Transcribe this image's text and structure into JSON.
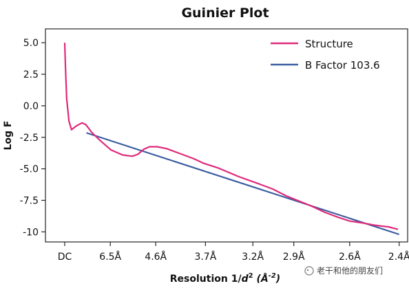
{
  "chart_data": {
    "type": "line",
    "title": "Guinier Plot",
    "ylabel": "Log F",
    "xlabel_parts": [
      "Resolution 1/",
      "d",
      "2",
      " (Å",
      "-2",
      ")"
    ],
    "ylim": [
      -10.8,
      6.1
    ],
    "yticks": [
      5.0,
      2.5,
      0.0,
      -2.5,
      -5.0,
      -7.5,
      -10.0
    ],
    "ytick_labels": [
      "5.0",
      "2.5",
      "0.0",
      "-2.5",
      "-5.0",
      "-7.5",
      "-10"
    ],
    "xlim_inv_d2": [
      -0.01,
      0.178
    ],
    "xticks": [
      {
        "label": "DC",
        "resolution_A": null,
        "inv_d2": 0.0
      },
      {
        "label": "6.5Å",
        "resolution_A": 6.5,
        "inv_d2": 0.02367
      },
      {
        "label": "4.6Å",
        "resolution_A": 4.6,
        "inv_d2": 0.04726
      },
      {
        "label": "3.7Å",
        "resolution_A": 3.7,
        "inv_d2": 0.07305
      },
      {
        "label": "3.2Å",
        "resolution_A": 3.2,
        "inv_d2": 0.09766
      },
      {
        "label": "2.9Å",
        "resolution_A": 2.9,
        "inv_d2": 0.11891
      },
      {
        "label": "2.6Å",
        "resolution_A": 2.6,
        "inv_d2": 0.14793
      },
      {
        "label": "2.4Å",
        "resolution_A": 2.4,
        "inv_d2": 0.17361
      }
    ],
    "series": [
      {
        "name": "Structure",
        "color": "#e0287a",
        "points": [
          [
            0.0,
            5.0
          ],
          [
            0.0004,
            3.0
          ],
          [
            0.001,
            0.6
          ],
          [
            0.0022,
            -1.2
          ],
          [
            0.0035,
            -1.9
          ],
          [
            0.006,
            -1.6
          ],
          [
            0.009,
            -1.35
          ],
          [
            0.011,
            -1.5
          ],
          [
            0.014,
            -2.1
          ],
          [
            0.018,
            -2.7
          ],
          [
            0.024,
            -3.5
          ],
          [
            0.03,
            -3.9
          ],
          [
            0.035,
            -4.0
          ],
          [
            0.038,
            -3.85
          ],
          [
            0.041,
            -3.45
          ],
          [
            0.044,
            -3.25
          ],
          [
            0.048,
            -3.25
          ],
          [
            0.053,
            -3.4
          ],
          [
            0.06,
            -3.8
          ],
          [
            0.067,
            -4.2
          ],
          [
            0.072,
            -4.55
          ],
          [
            0.08,
            -4.95
          ],
          [
            0.09,
            -5.6
          ],
          [
            0.1,
            -6.15
          ],
          [
            0.108,
            -6.6
          ],
          [
            0.115,
            -7.15
          ],
          [
            0.12,
            -7.45
          ],
          [
            0.128,
            -7.95
          ],
          [
            0.135,
            -8.45
          ],
          [
            0.142,
            -8.85
          ],
          [
            0.148,
            -9.15
          ],
          [
            0.155,
            -9.3
          ],
          [
            0.16,
            -9.45
          ],
          [
            0.165,
            -9.55
          ],
          [
            0.168,
            -9.6
          ],
          [
            0.173,
            -9.8
          ]
        ]
      },
      {
        "name": "B Factor 103.6",
        "color": "#3a5da0",
        "points": [
          [
            0.0113,
            -2.15
          ],
          [
            0.1736,
            -10.2
          ]
        ]
      }
    ],
    "legend_position": "top-right",
    "grid": false
  },
  "watermark": "老干和他的朋友们"
}
